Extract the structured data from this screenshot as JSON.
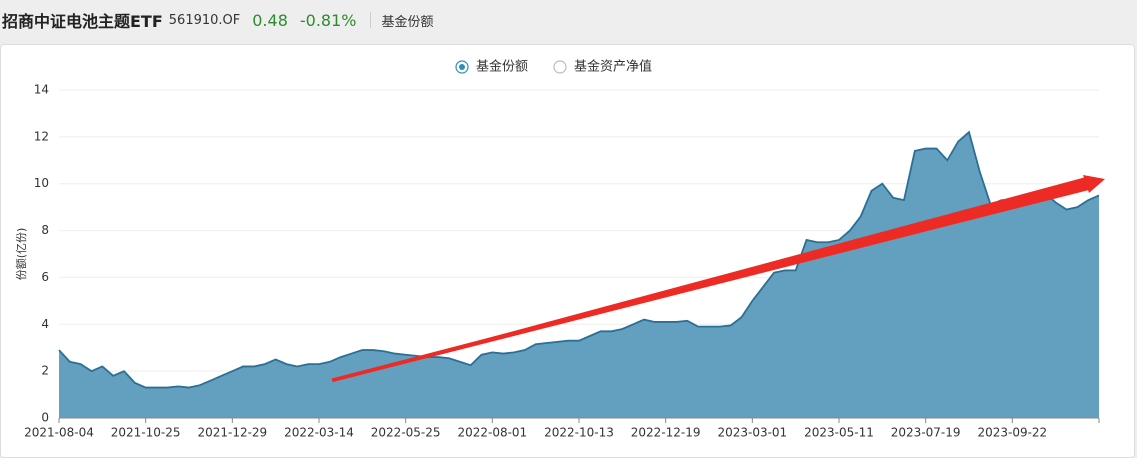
{
  "header": {
    "title": "招商中证电池主题ETF",
    "code": "561910.OF",
    "price": "0.48",
    "change": "-0.81%",
    "tab": "基金份额"
  },
  "controls": {
    "options": [
      {
        "label": "基金份额",
        "selected": true
      },
      {
        "label": "基金资产净值",
        "selected": false
      }
    ]
  },
  "chart_data": {
    "type": "area",
    "y_label": "份额(亿份)",
    "grid": true,
    "categories": [
      "2021-08-04",
      null,
      null,
      null,
      null,
      null,
      null,
      null,
      "2021-10-25",
      null,
      null,
      null,
      null,
      null,
      null,
      null,
      "2021-12-29",
      null,
      null,
      null,
      null,
      null,
      null,
      null,
      "2022-03-14",
      null,
      null,
      null,
      null,
      null,
      null,
      null,
      "2022-05-25",
      null,
      null,
      null,
      null,
      null,
      null,
      null,
      "2022-08-01",
      null,
      null,
      null,
      null,
      null,
      null,
      null,
      "2022-10-13",
      null,
      null,
      null,
      null,
      null,
      null,
      null,
      "2022-12-19",
      null,
      null,
      null,
      null,
      null,
      null,
      null,
      "2023-03-01",
      null,
      null,
      null,
      null,
      null,
      null,
      null,
      "2023-05-11",
      null,
      null,
      null,
      null,
      null,
      null,
      null,
      "2023-07-19",
      null,
      null,
      null,
      null,
      null,
      null,
      null,
      "2023-09-22",
      null,
      null,
      null,
      null,
      null,
      null,
      null,
      null
    ],
    "series": [
      {
        "name": "基金份额",
        "color": "#639fbf",
        "line_color": "#2b6f96",
        "values": [
          2.9,
          2.4,
          2.3,
          2.0,
          2.2,
          1.8,
          2.0,
          1.5,
          1.3,
          1.3,
          1.3,
          1.35,
          1.3,
          1.4,
          1.6,
          1.8,
          2.0,
          2.2,
          2.2,
          2.3,
          2.5,
          2.3,
          2.2,
          2.3,
          2.3,
          2.4,
          2.6,
          2.75,
          2.9,
          2.9,
          2.85,
          2.75,
          2.7,
          2.65,
          2.6,
          2.6,
          2.55,
          2.4,
          2.25,
          2.7,
          2.8,
          2.75,
          2.8,
          2.9,
          3.15,
          3.2,
          3.25,
          3.3,
          3.3,
          3.5,
          3.7,
          3.7,
          3.8,
          4.0,
          4.2,
          4.1,
          4.1,
          4.1,
          4.15,
          3.9,
          3.9,
          3.9,
          3.95,
          4.3,
          5.0,
          5.6,
          6.2,
          6.3,
          6.3,
          7.6,
          7.5,
          7.5,
          7.6,
          8.0,
          8.6,
          9.7,
          10.0,
          9.4,
          9.3,
          11.4,
          11.5,
          11.5,
          11.0,
          11.8,
          12.2,
          10.5,
          9.1,
          9.3,
          9.3,
          9.3,
          9.5,
          9.6,
          9.2,
          8.9,
          9.0,
          9.3,
          9.5
        ]
      }
    ],
    "ylim": [
      0,
      14
    ],
    "yticks": [
      0,
      2,
      4,
      6,
      8,
      10,
      12,
      14
    ]
  }
}
